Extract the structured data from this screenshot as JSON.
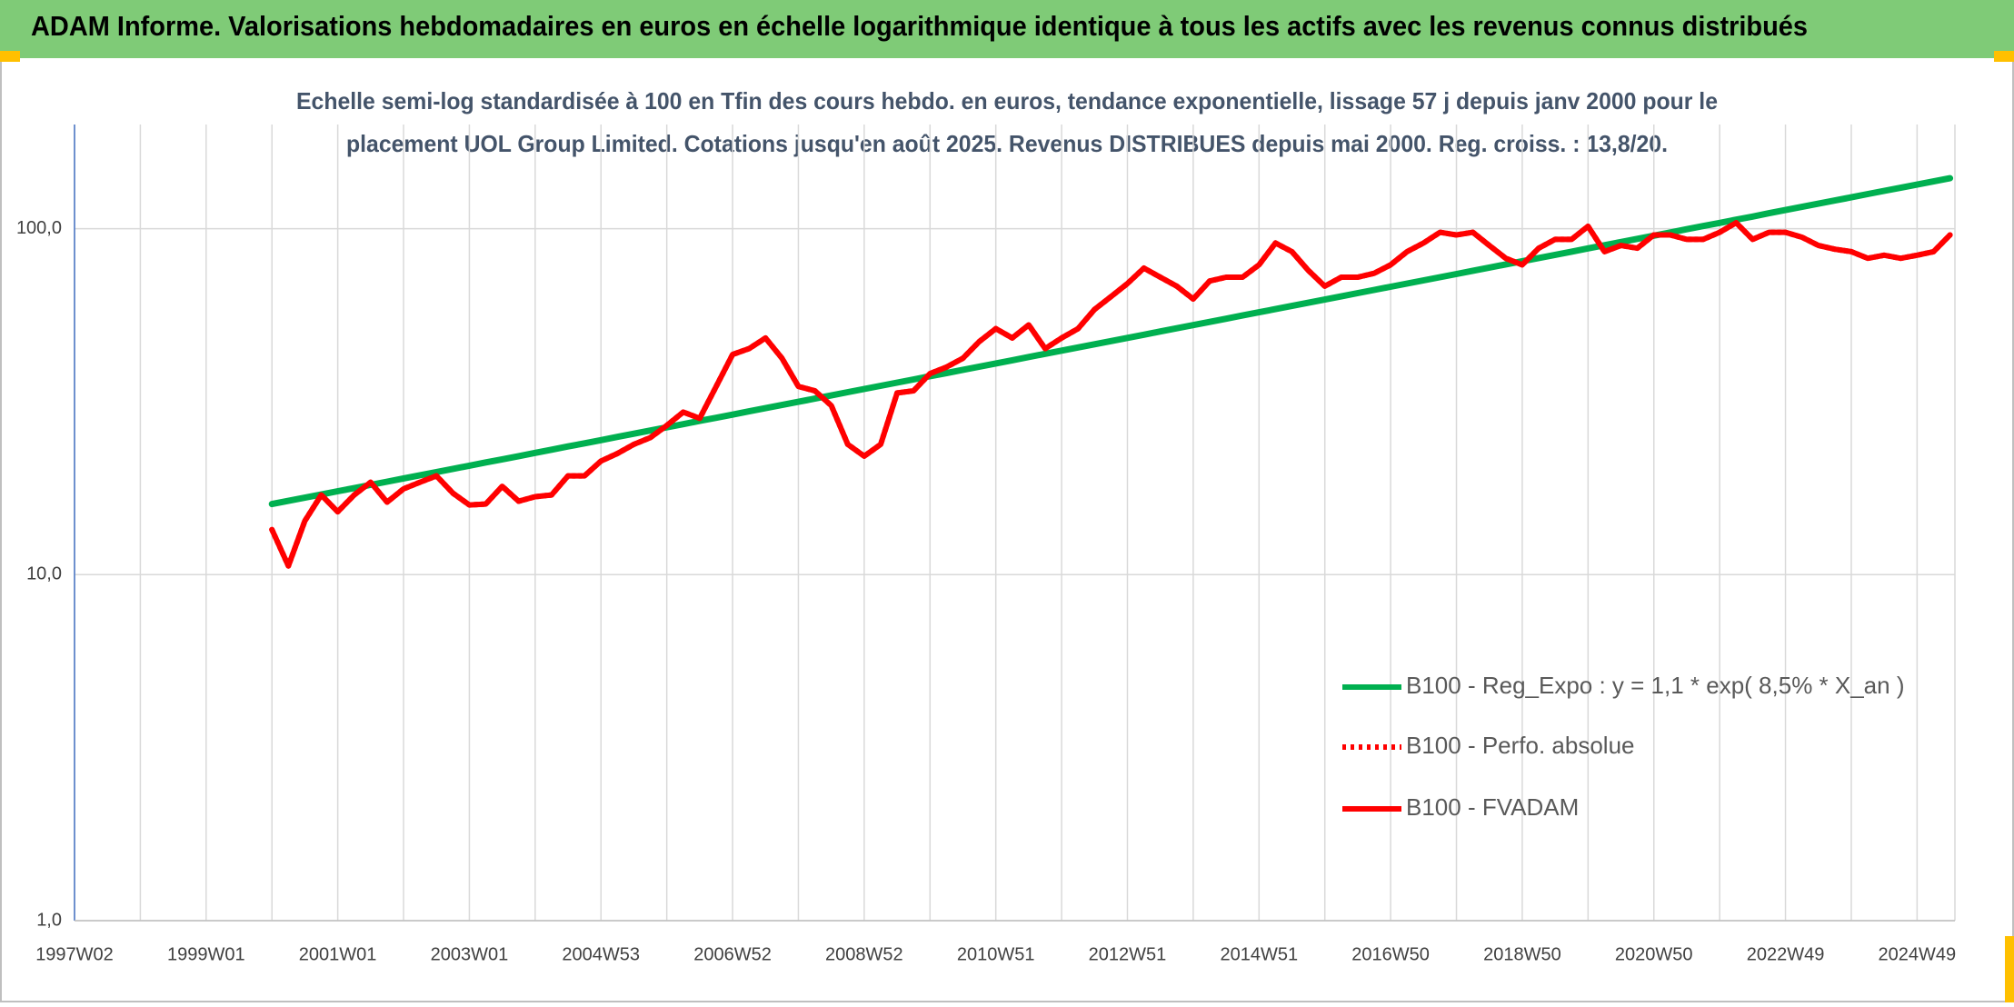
{
  "chart_data": {
    "type": "line",
    "title": "ADAM Informe. Valorisations hebdomadaires en euros en échelle logarithmique identique à tous les actifs avec les revenus connus distribués",
    "subtitle": [
      "Echelle semi-log standardisée à 100 en Tfin des cours hebdo. en euros, tendance exponentielle, lissage 57 j depuis janv 2000 pour le",
      "placement UOL Group Limited. Cotations jusqu'en août 2025. Revenus DISTRIBUES depuis mai 2000. Reg. croiss. : 13,8/20."
    ],
    "log_scale": true,
    "grid": true,
    "legend": "lower right",
    "ylim": [
      1,
      200
    ],
    "yticks": [
      {
        "value": 1,
        "label": "1,0"
      },
      {
        "value": 10,
        "label": "10,0"
      },
      {
        "value": 100,
        "label": "100,0"
      }
    ],
    "categories": [
      "1997W02",
      null,
      null,
      null,
      null,
      null,
      null,
      null,
      "1999W01",
      null,
      null,
      null,
      null,
      null,
      null,
      null,
      "2001W01",
      null,
      null,
      null,
      null,
      null,
      null,
      null,
      "2003W01",
      null,
      null,
      null,
      null,
      null,
      null,
      null,
      "2004W53",
      null,
      null,
      null,
      null,
      null,
      null,
      null,
      "2006W52",
      null,
      null,
      null,
      null,
      null,
      null,
      null,
      "2008W52",
      null,
      null,
      null,
      null,
      null,
      null,
      null,
      "2010W51",
      null,
      null,
      null,
      null,
      null,
      null,
      null,
      "2012W51",
      null,
      null,
      null,
      null,
      null,
      null,
      null,
      "2014W51",
      null,
      null,
      null,
      null,
      null,
      null,
      null,
      "2016W50",
      null,
      null,
      null,
      null,
      null,
      null,
      null,
      "2018W50",
      null,
      null,
      null,
      null,
      null,
      null,
      null,
      "2020W50",
      null,
      null,
      null,
      null,
      null,
      null,
      null,
      "2022W49",
      null,
      null,
      null,
      null,
      null,
      null,
      null,
      "2024W49",
      null,
      null
    ],
    "series": [
      {
        "name": "B100 - Reg_Expo : y = 1,1 * exp( 8,5% *  X_an )",
        "color": "#00b050",
        "style": "solid",
        "values": [
          null,
          null,
          null,
          null,
          null,
          null,
          null,
          null,
          null,
          null,
          null,
          null,
          16.0,
          16.34,
          16.69,
          17.05,
          17.42,
          17.79,
          18.18,
          18.57,
          18.97,
          19.38,
          19.79,
          20.22,
          20.65,
          21.1,
          21.55,
          22.01,
          22.49,
          22.97,
          23.47,
          23.97,
          24.48,
          25.01,
          25.55,
          26.1,
          26.66,
          27.23,
          27.82,
          28.41,
          29.02,
          29.65,
          30.28,
          30.93,
          31.6,
          32.28,
          32.97,
          33.68,
          34.41,
          35.15,
          35.9,
          36.67,
          37.46,
          38.26,
          39.09,
          39.93,
          40.78,
          41.66,
          42.56,
          43.47,
          44.4,
          45.36,
          46.33,
          47.33,
          48.35,
          49.38,
          50.45,
          51.53,
          52.64,
          53.77,
          54.93,
          56.11,
          57.31,
          58.55,
          59.8,
          61.09,
          62.4,
          63.74,
          65.11,
          66.51,
          67.94,
          69.4,
          70.89,
          72.42,
          73.97,
          75.56,
          77.18,
          78.84,
          80.53,
          82.26,
          84.03,
          85.83,
          87.68,
          89.56,
          91.49,
          93.45,
          95.46,
          97.51,
          99.61,
          101.75,
          103.9,
          106.2,
          108.4,
          110.8,
          113.2,
          115.6,
          118.1,
          120.6,
          123.2,
          125.9,
          128.6,
          131.3,
          134.1,
          137.0,
          139.9
        ]
      },
      {
        "name": "B100 - Perfo. absolue",
        "color": "#ff0000",
        "style": "dotted",
        "values": [
          null,
          null,
          null,
          null,
          null,
          null,
          null,
          null,
          null,
          null,
          null,
          null,
          13.5,
          10.6,
          14.3,
          17,
          15.2,
          17,
          18.5,
          16.2,
          17.7,
          18.5,
          19.3,
          17.2,
          15.9,
          16,
          18,
          16.3,
          16.8,
          17,
          19.3,
          19.3,
          21.3,
          22.4,
          23.8,
          24.9,
          27.0,
          29.5,
          28.3,
          35,
          43.3,
          45,
          48.3,
          42.2,
          35,
          34,
          30.8,
          23.8,
          22,
          23.8,
          33.5,
          34,
          38.1,
          39.8,
          42.2,
          47.2,
          51.4,
          48.3,
          52.7,
          45,
          48.3,
          51.4,
          58.4,
          63.6,
          69.4,
          76.9,
          72.4,
          68.2,
          62.6,
          70.6,
          72.4,
          72.4,
          78.6,
          90.9,
          85.8,
          75.7,
          68.2,
          72.4,
          72.4,
          74.3,
          78.6,
          85.8,
          90.9,
          97.6,
          95.9,
          97.6,
          89.4,
          82.1,
          78.6,
          87.8,
          93.1,
          93.1,
          101.6,
          85.8,
          89.4,
          87.8,
          95.9,
          95.9,
          93.1,
          93.1,
          97.6,
          104,
          93.1,
          97.6,
          97.6,
          94.5,
          89.4,
          87.2,
          85.8,
          82.1,
          83.8,
          82.1,
          83.8,
          85.8,
          95.9
        ]
      },
      {
        "name": "B100 - FVADAM",
        "color": "#ff0000",
        "style": "solid",
        "values": [
          null,
          null,
          null,
          null,
          null,
          null,
          null,
          null,
          null,
          null,
          null,
          null,
          13.5,
          10.6,
          14.3,
          17,
          15.2,
          17,
          18.5,
          16.2,
          17.7,
          18.5,
          19.3,
          17.2,
          15.9,
          16,
          18,
          16.3,
          16.8,
          17,
          19.3,
          19.3,
          21.3,
          22.4,
          23.8,
          24.9,
          27.0,
          29.5,
          28.3,
          35,
          43.3,
          45,
          48.3,
          42.2,
          35,
          34,
          30.8,
          23.8,
          22,
          23.8,
          33.5,
          34,
          38.1,
          39.8,
          42.2,
          47.2,
          51.4,
          48.3,
          52.7,
          45,
          48.3,
          51.4,
          58.4,
          63.6,
          69.4,
          76.9,
          72.4,
          68.2,
          62.6,
          70.6,
          72.4,
          72.4,
          78.6,
          90.9,
          85.8,
          75.7,
          68.2,
          72.4,
          72.4,
          74.3,
          78.6,
          85.8,
          90.9,
          97.6,
          95.9,
          97.6,
          89.4,
          82.1,
          78.6,
          87.8,
          93.1,
          93.1,
          101.6,
          85.8,
          89.4,
          87.8,
          95.9,
          95.9,
          93.1,
          93.1,
          97.6,
          104,
          93.1,
          97.6,
          97.6,
          94.5,
          89.4,
          87.2,
          85.8,
          82.1,
          83.8,
          82.1,
          83.8,
          85.8,
          95.9
        ]
      }
    ]
  }
}
